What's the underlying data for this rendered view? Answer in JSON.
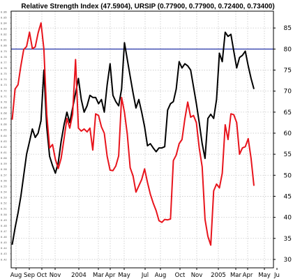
{
  "chart_data": {
    "type": "line",
    "title": "Relative Strength Index (47.5904), URSIP (0.77900, 0.77900, 0.72400, 0.73400)",
    "x_ticks": [
      "Aug",
      "Sep",
      "Oct",
      "Nov",
      "2004",
      "Mar",
      "Apr",
      "May",
      "Jul",
      "Aug",
      "Oct",
      "Nov",
      "2005",
      "Mar",
      "Apr",
      "May",
      "Ju"
    ],
    "rsi_axis": {
      "min": 28,
      "max": 89,
      "ticks": [
        30,
        35,
        40,
        45,
        50,
        55,
        60,
        65,
        70,
        75,
        80,
        85
      ]
    },
    "price_axis": {
      "ticks": [
        "0.86",
        "0.85",
        "0.84",
        "0.83",
        "0.82",
        "0.81",
        "0.80",
        "0.79",
        "0.78",
        "0.77",
        "0.76",
        "0.75",
        "0.74",
        "0.73",
        "0.72",
        "0.71",
        "0.70",
        "0.69",
        "0.68",
        "0.67",
        "0.66",
        "0.65",
        "0.64",
        "0.63",
        "0.62",
        "0.61",
        "0.60",
        "0.59",
        "0.58",
        "0.57",
        "0.56",
        "0.55",
        "0.54",
        "0.53",
        "0.52",
        "0.51",
        "0.50",
        "0.49",
        "0.48",
        "0.47",
        "0.46",
        "0.45",
        "0.44",
        "0.43",
        "0.42"
      ]
    },
    "overbought_level": 80,
    "grid": true,
    "colors": {
      "rsi": "#e8141c",
      "price": "#000000",
      "level": "#1020a0",
      "grid": "#c8c8c8"
    },
    "series": [
      {
        "key": "rsi",
        "values": [
          63.2,
          70.5,
          71.5,
          76,
          79.9,
          80.6,
          84,
          80.1,
          80.5,
          83.8,
          86.2,
          80,
          64.5,
          56.5,
          57.3,
          53.8,
          51.6,
          54,
          58.7,
          63.5,
          61.2,
          64.5,
          77.5,
          61.2,
          60.5,
          61,
          60.3,
          61.2,
          56,
          64.6,
          64.2,
          61.5,
          60,
          54.5,
          51.2,
          51.1,
          52.2,
          54.6,
          68.5,
          65,
          59.7,
          51.8,
          49.8,
          46,
          47.5,
          49,
          51.5,
          48.3,
          45.5,
          43.4,
          41.6,
          39.2,
          38.8,
          39.5,
          39.4,
          39.6,
          53.5,
          54.8,
          57.5,
          58.5,
          63.4,
          67.4,
          63.8,
          64.2,
          62.5,
          56.5,
          52,
          39.5,
          35.5,
          33.4,
          46.3,
          47.9,
          47,
          50.5,
          62,
          58.5,
          64.6,
          64.4,
          62.5,
          55,
          56.5,
          56.8,
          58.7,
          54,
          47.5
        ]
      },
      {
        "key": "price",
        "values": [
          33.5,
          37.5,
          41,
          45,
          50,
          55,
          58,
          61,
          59,
          60,
          63,
          75,
          61.5,
          54.5,
          52.3,
          50.5,
          53,
          58,
          62,
          65,
          62.5,
          66,
          69.5,
          73,
          68,
          65,
          66.5,
          69,
          68.5,
          68.5,
          67,
          68,
          65,
          71.5,
          76.5,
          69,
          67.5,
          66.5,
          70.5,
          81.5,
          77.5,
          73.5,
          69.5,
          66,
          68,
          65,
          61.5,
          57,
          57.5,
          56.5,
          55.6,
          56.5,
          56.5,
          56.8,
          65.5,
          67,
          67.5,
          70.5,
          77,
          75.5,
          76.5,
          76,
          75,
          71,
          67,
          62.5,
          57.5,
          54,
          63.5,
          64.5,
          63.5,
          68,
          79,
          77,
          84,
          83,
          83.5,
          79.5,
          75.5,
          78,
          78.5,
          79.5,
          76,
          73,
          70.5
        ]
      }
    ]
  }
}
